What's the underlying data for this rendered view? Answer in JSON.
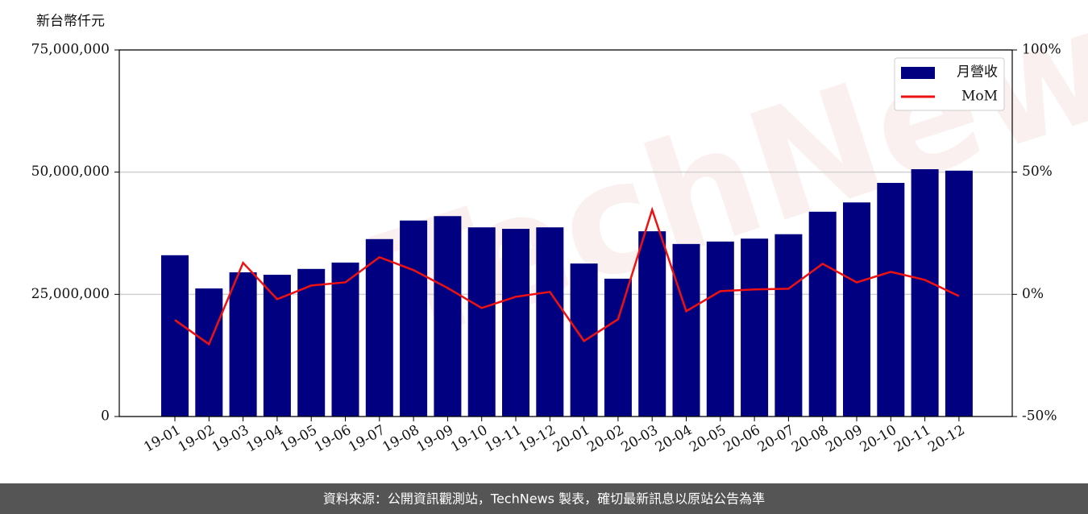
{
  "chart_data": {
    "type": "bar_line",
    "y_label": "新台幣仟元",
    "watermark": "TechNews",
    "footer": "資料來源：公開資訊觀測站，TechNews 製表，確切最新訊息以原站公告為準",
    "categories": [
      "19-01",
      "19-02",
      "19-03",
      "19-04",
      "19-05",
      "19-06",
      "19-07",
      "19-08",
      "19-09",
      "19-10",
      "19-11",
      "19-12",
      "20-01",
      "20-02",
      "20-03",
      "20-04",
      "20-05",
      "20-06",
      "20-07",
      "20-08",
      "20-09",
      "20-10",
      "20-11",
      "20-12"
    ],
    "series": [
      {
        "name": "月營收",
        "type": "bar",
        "color": "#000080",
        "values": [
          33000000,
          26200000,
          29500000,
          29000000,
          30200000,
          31500000,
          36300000,
          40100000,
          41000000,
          38700000,
          38400000,
          38700000,
          31300000,
          28200000,
          37900000,
          35300000,
          35800000,
          36400000,
          37300000,
          41900000,
          43800000,
          47800000,
          50600000,
          50300000
        ]
      },
      {
        "name": "MoM",
        "type": "line",
        "axis": "y2",
        "color": "#ee1111",
        "values": [
          -10.5,
          -20.4,
          12.9,
          -2.0,
          3.6,
          4.9,
          15.2,
          9.9,
          2.6,
          -5.6,
          -1.0,
          1.0,
          -19.1,
          -10.2,
          34.6,
          -6.9,
          1.3,
          2.0,
          2.3,
          12.5,
          4.9,
          9.2,
          5.9,
          -0.7
        ]
      }
    ],
    "ylim": [
      0,
      75000000
    ],
    "yticks": [
      {
        "value": 0,
        "label": "0"
      },
      {
        "value": 25000000,
        "label": "25,000,000"
      },
      {
        "value": 50000000,
        "label": "50,000,000"
      },
      {
        "value": 75000000,
        "label": "75,000,000"
      }
    ],
    "y2lim": [
      -50,
      100
    ],
    "y2ticks": [
      {
        "value": -50,
        "label": "-50%"
      },
      {
        "value": 0,
        "label": "0%"
      },
      {
        "value": 50,
        "label": "50%"
      },
      {
        "value": 100,
        "label": "100%"
      }
    ],
    "grid": true,
    "legend": "upper right"
  }
}
